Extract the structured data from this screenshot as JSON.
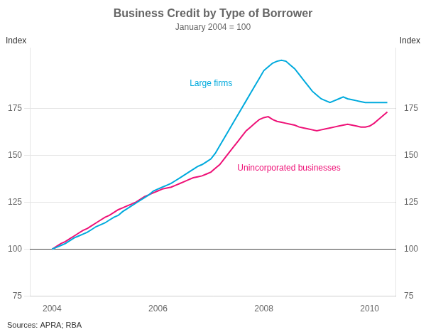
{
  "chart_data": {
    "type": "line",
    "title": "Business Credit by Type of Borrower",
    "subtitle": "January 2004 = 100",
    "ylabel": "Index",
    "y2label": "Index",
    "source": "Sources: APRA; RBA",
    "x": [
      2004.0,
      2004.083,
      2004.167,
      2004.25,
      2004.333,
      2004.417,
      2004.5,
      2004.583,
      2004.667,
      2004.75,
      2004.833,
      2004.917,
      2005.0,
      2005.083,
      2005.167,
      2005.25,
      2005.333,
      2005.417,
      2005.5,
      2005.583,
      2005.667,
      2005.75,
      2005.833,
      2005.917,
      2006.0,
      2006.083,
      2006.167,
      2006.25,
      2006.333,
      2006.417,
      2006.5,
      2006.583,
      2006.667,
      2006.75,
      2006.833,
      2006.917,
      2007.0,
      2007.083,
      2007.167,
      2007.25,
      2007.333,
      2007.417,
      2007.5,
      2007.583,
      2007.667,
      2007.75,
      2007.833,
      2007.917,
      2008.0,
      2008.083,
      2008.167,
      2008.25,
      2008.333,
      2008.417,
      2008.5,
      2008.583,
      2008.667,
      2008.75,
      2008.833,
      2008.917,
      2009.0,
      2009.083,
      2009.167,
      2009.25,
      2009.333,
      2009.417,
      2009.5,
      2009.583,
      2009.667,
      2009.75,
      2009.833,
      2009.917,
      2010.0,
      2010.083,
      2010.167,
      2010.25,
      2010.333
    ],
    "series": [
      {
        "name": "Large firms",
        "color": "#00AADD",
        "label_x": 2006.6,
        "label_y": 188,
        "values": [
          100,
          101,
          102,
          103,
          104.5,
          106,
          107,
          108,
          109,
          110.5,
          112,
          113,
          114,
          115.5,
          117,
          118,
          120,
          121.5,
          123,
          124.5,
          126,
          127.5,
          129,
          131,
          132,
          133,
          134,
          135,
          136.5,
          138,
          139.5,
          141,
          142.5,
          144,
          145,
          146.5,
          148,
          151,
          155,
          159,
          163,
          167,
          171,
          175,
          179,
          183,
          187,
          191,
          195,
          197,
          199,
          200,
          200.5,
          200,
          198,
          196,
          193,
          190,
          187,
          184,
          182,
          180,
          179,
          178,
          179,
          180,
          181,
          180,
          179.5,
          179,
          178.5,
          178,
          178,
          178,
          178,
          178,
          178
        ]
      },
      {
        "name": "Unincorporated businesses",
        "color": "#EE1177",
        "label_x": 2007.5,
        "label_y": 143,
        "values": [
          100,
          101.5,
          103,
          104,
          105.5,
          107,
          108.5,
          110,
          111,
          112.5,
          114,
          115.5,
          117,
          118,
          119.5,
          121,
          122,
          123,
          124,
          125,
          126.5,
          128,
          129,
          130,
          131,
          132,
          132.5,
          133,
          134,
          135,
          136,
          137,
          138,
          138.5,
          139,
          140,
          141,
          143,
          145,
          148,
          151,
          154,
          157,
          160,
          163,
          165,
          167,
          169,
          170,
          170.5,
          169,
          168,
          167.5,
          167,
          166.5,
          166,
          165,
          164.5,
          164,
          163.5,
          163,
          163.5,
          164,
          164.5,
          165,
          165.5,
          166,
          166.5,
          166,
          165.5,
          165,
          165,
          165.5,
          167,
          169,
          171,
          173
        ]
      }
    ],
    "hline": 100,
    "xlim": [
      2003.58,
      2010.5
    ],
    "xticks": [
      2004,
      2006,
      2008,
      2010
    ],
    "ylim": [
      75,
      207
    ],
    "yticks": [
      75,
      100,
      125,
      150,
      175
    ],
    "y2lim": [
      75,
      207
    ],
    "y2ticks": [
      75,
      100,
      125,
      150,
      175
    ],
    "grid": "y"
  }
}
